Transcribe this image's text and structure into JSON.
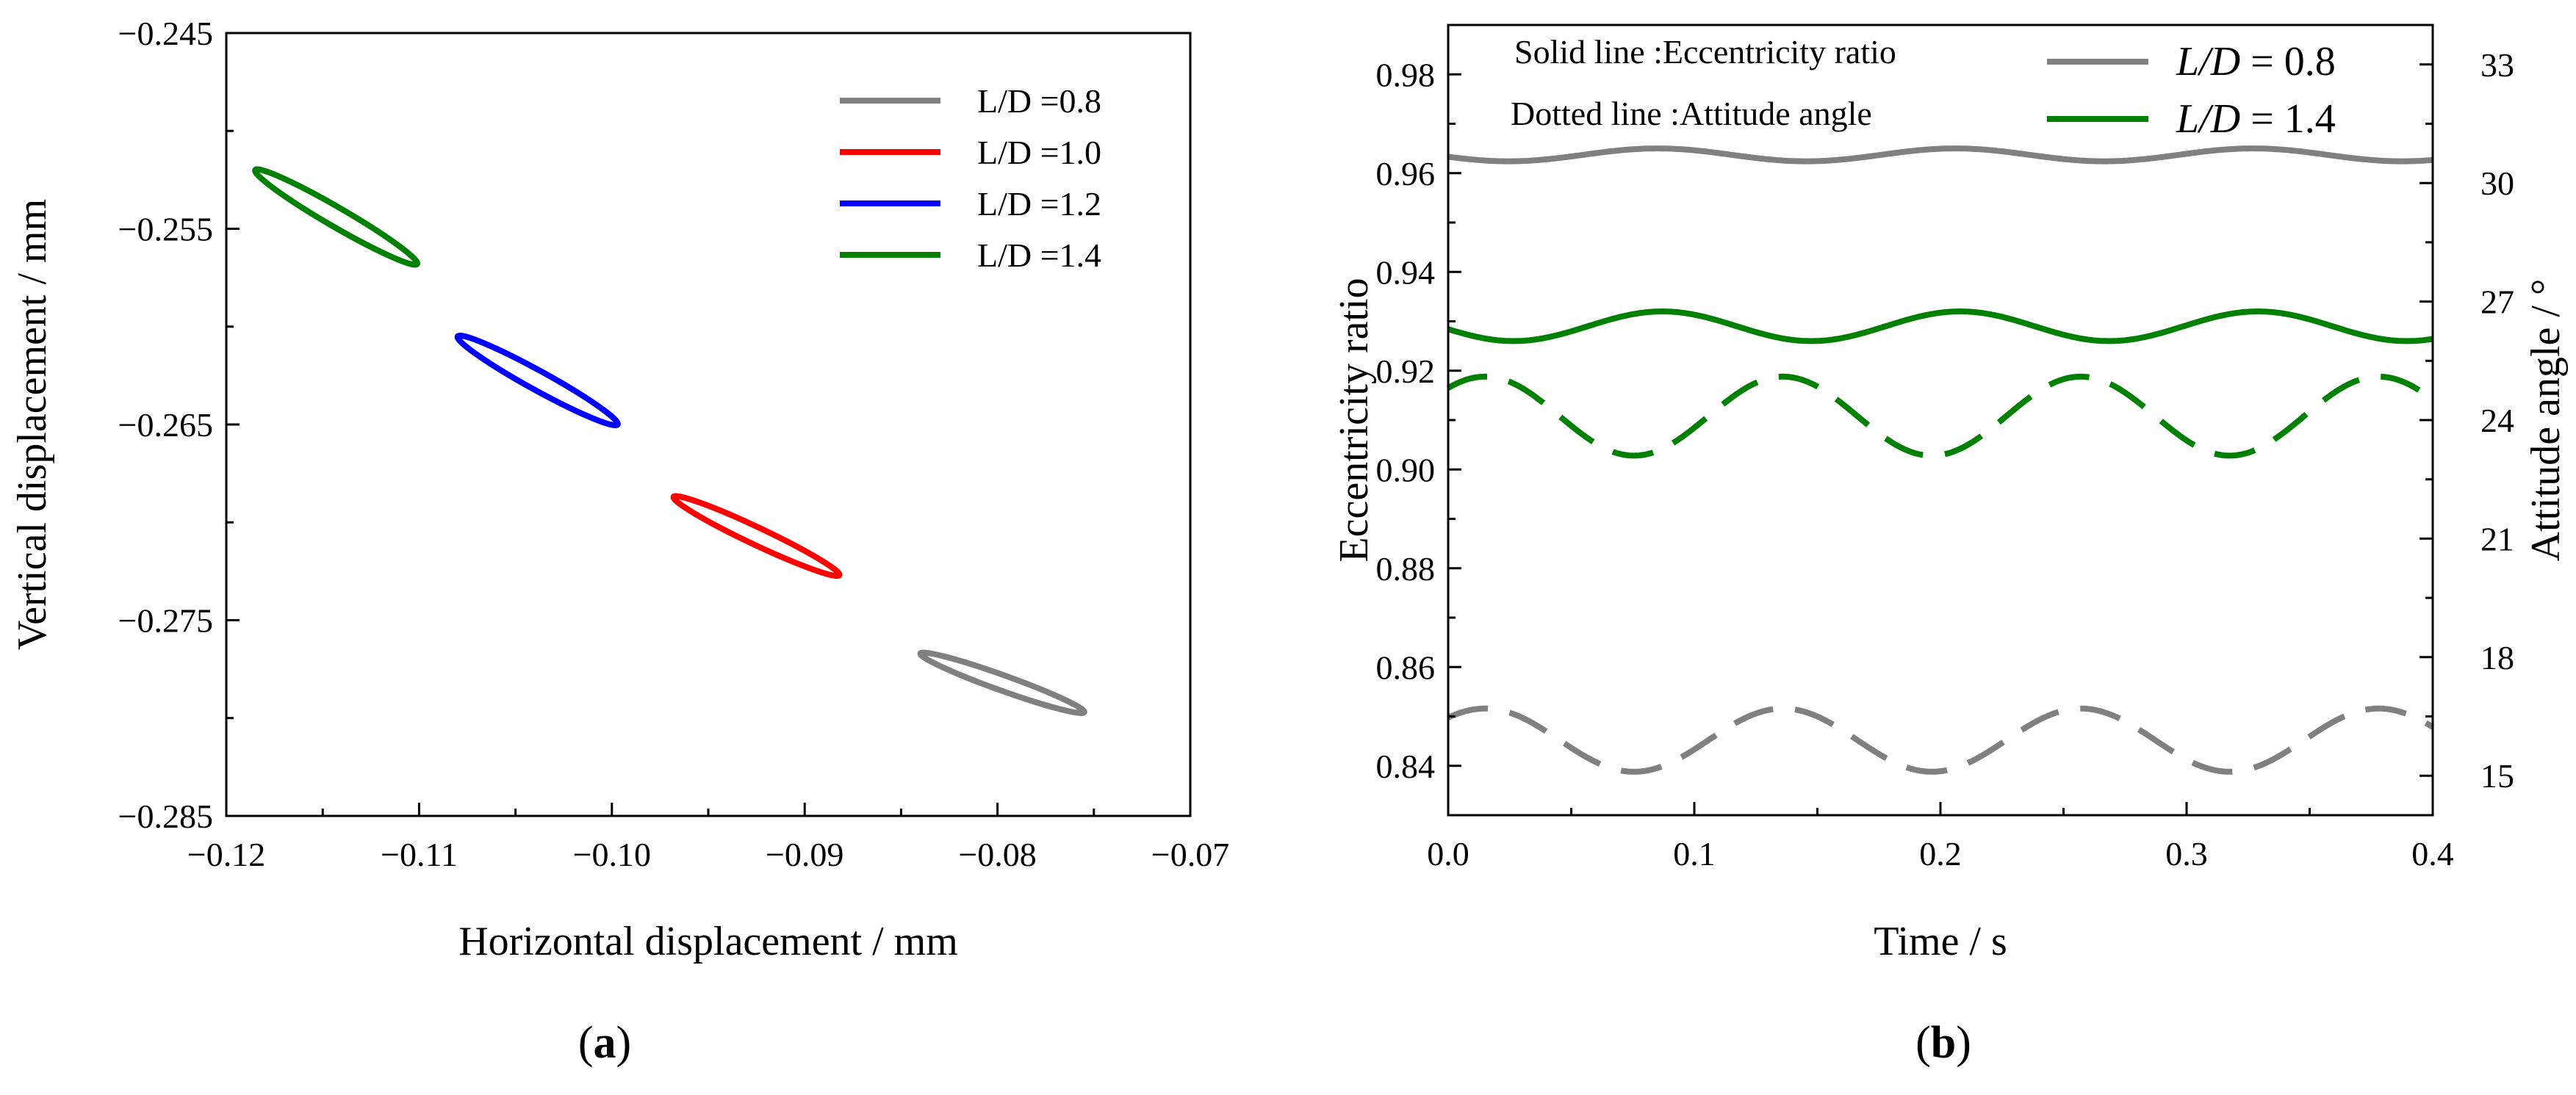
{
  "colors": {
    "gray": "#808080",
    "red": "#ff0000",
    "blue": "#0000ff",
    "green": "#008000"
  },
  "chart_data": [
    {
      "id": "a",
      "type": "scatter",
      "panel_label_open": "(",
      "panel_label": "a",
      "panel_label_close": ")",
      "xlabel": "Horizontal displacement / mm",
      "ylabel": "Vertical displacement / mm",
      "xlim": [
        -0.12,
        -0.07
      ],
      "ylim": [
        -0.285,
        -0.245
      ],
      "xticks": [
        -0.12,
        -0.11,
        -0.1,
        -0.09,
        -0.08,
        -0.07
      ],
      "xtick_labels": [
        "−0.12",
        "−0.11",
        "−0.10",
        "−0.09",
        "−0.08",
        "−0.07"
      ],
      "yticks": [
        -0.245,
        -0.255,
        -0.265,
        -0.275,
        -0.285
      ],
      "ytick_labels": [
        "−0.245",
        "−0.255",
        "−0.265",
        "−0.275",
        "−0.285"
      ],
      "legend_position": "top-right",
      "series": [
        {
          "name": "L/D =0.8",
          "color_key": "gray",
          "x_start": -0.084,
          "y_start": -0.2767,
          "x_end": -0.0755,
          "y_end": -0.2797,
          "minor_width": 0.0004
        },
        {
          "name": "L/D =1.0",
          "color_key": "red",
          "x_start": -0.0968,
          "y_start": -0.2687,
          "x_end": -0.0882,
          "y_end": -0.2727,
          "minor_width": 0.00045
        },
        {
          "name": "L/D =1.2",
          "color_key": "blue",
          "x_start": -0.108,
          "y_start": -0.2605,
          "x_end": -0.0997,
          "y_end": -0.265,
          "minor_width": 0.0005
        },
        {
          "name": "L/D =1.4",
          "color_key": "green",
          "x_start": -0.1185,
          "y_start": -0.252,
          "x_end": -0.1101,
          "y_end": -0.2568,
          "minor_width": 0.0005
        }
      ]
    },
    {
      "id": "b",
      "type": "line",
      "panel_label_open": "(",
      "panel_label": "b",
      "panel_label_close": ")",
      "xlabel": "Time / s",
      "ylabel": "Eccentricity ratio",
      "y2label": "Attitude angle / °",
      "xlim": [
        0.0,
        0.4
      ],
      "ylim": [
        0.83,
        0.99
      ],
      "y2lim": [
        14,
        34
      ],
      "xticks": [
        0.0,
        0.1,
        0.2,
        0.3,
        0.4
      ],
      "xtick_labels": [
        "0.0",
        "0.1",
        "0.2",
        "0.3",
        "0.4"
      ],
      "yticks": [
        0.84,
        0.86,
        0.88,
        0.9,
        0.92,
        0.94,
        0.96,
        0.98
      ],
      "ytick_labels": [
        "0.84",
        "0.86",
        "0.88",
        "0.90",
        "0.92",
        "0.94",
        "0.96",
        "0.98"
      ],
      "y2ticks": [
        15,
        18,
        21,
        24,
        27,
        30,
        33
      ],
      "y2tick_labels": [
        "15",
        "18",
        "21",
        "24",
        "27",
        "30",
        "33"
      ],
      "annotation_solid": "Solid line :Eccentricity ratio",
      "annotation_dotted": "Dotted line :Attitude angle",
      "legend_position": "top-right",
      "legend": [
        {
          "prefix": "L/D",
          "suffix": " = 0.8",
          "color_key": "gray"
        },
        {
          "prefix": "L/D",
          "suffix": " = 1.4",
          "color_key": "green"
        }
      ],
      "series": [
        {
          "name": "L/D = 0.8 eccentricity ratio",
          "axis": "left",
          "style": "solid",
          "color_key": "gray",
          "mean": 0.9637,
          "amplitude": 0.0013,
          "period": 0.121,
          "phase_time": 0.085
        },
        {
          "name": "L/D = 1.4 eccentricity ratio",
          "axis": "left",
          "style": "solid",
          "color_key": "green",
          "mean": 0.929,
          "amplitude": 0.003,
          "period": 0.121,
          "phase_time": 0.087
        },
        {
          "name": "L/D = 1.4 attitude angle",
          "axis": "right",
          "style": "dashed",
          "color_key": "green",
          "mean": 24.1,
          "amplitude": 1.0,
          "period": 0.121,
          "phase_time": 0.015
        },
        {
          "name": "L/D = 0.8 attitude angle",
          "axis": "right",
          "style": "dashed",
          "color_key": "gray",
          "mean": 15.9,
          "amplitude": 0.8,
          "period": 0.121,
          "phase_time": 0.015
        }
      ]
    }
  ]
}
